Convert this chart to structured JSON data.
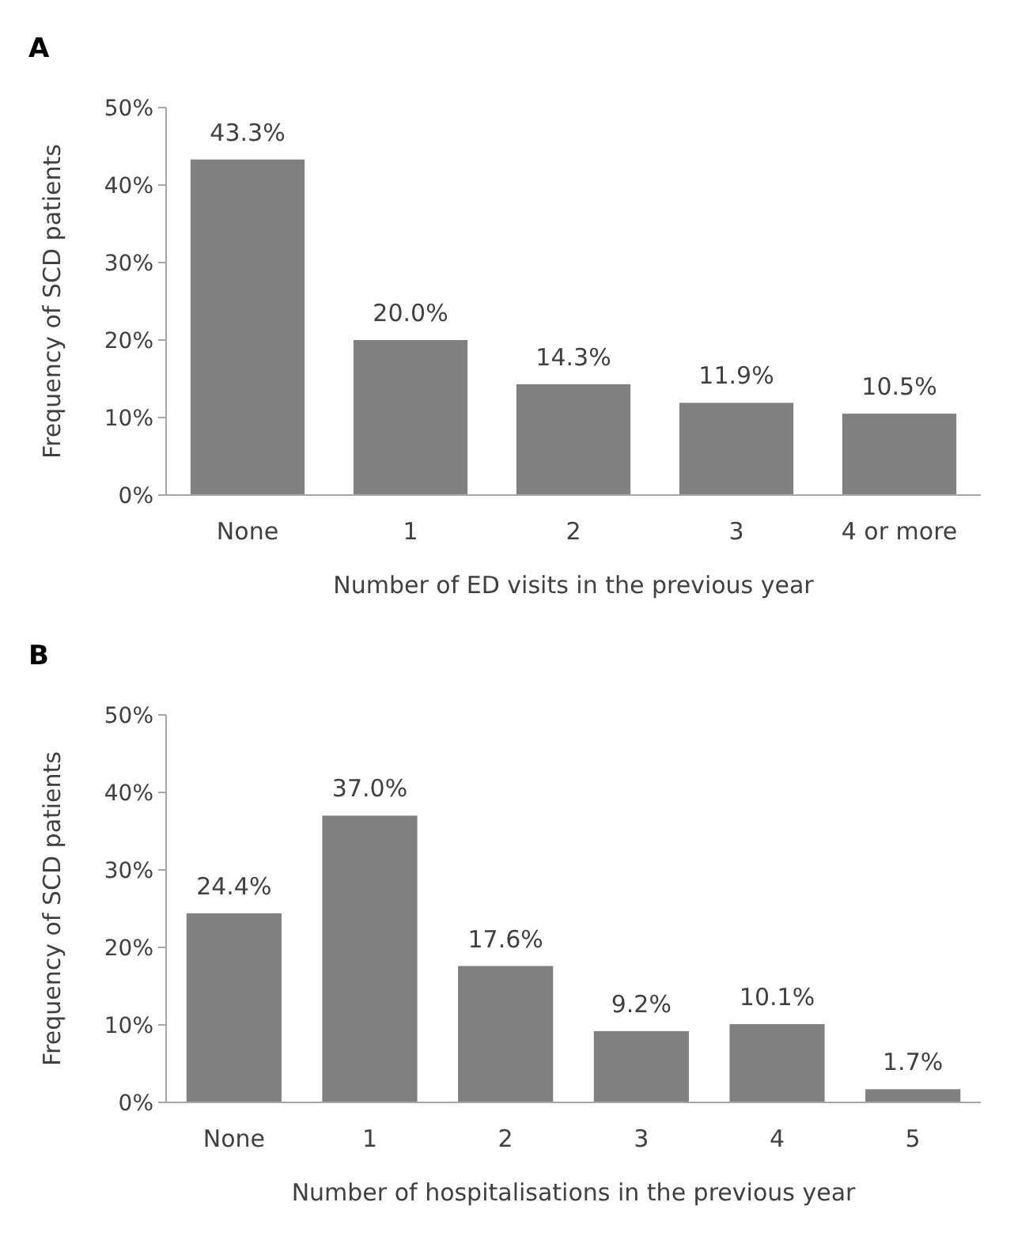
{
  "chart_data": [
    {
      "type": "bar",
      "title": "A",
      "xlabel": "Number of ED visits in the previous year",
      "ylabel": "Frequency of SCD patients",
      "categories": [
        "None",
        "1",
        "2",
        "3",
        "4 or more"
      ],
      "values": [
        43.3,
        20.0,
        14.3,
        11.9,
        10.5
      ],
      "value_labels": [
        "43.3%",
        "20.0%",
        "14.3%",
        "11.9%",
        "10.5%"
      ],
      "color": "#808080",
      "ylim": [
        0,
        50
      ],
      "yticks": [
        {
          "value": 0,
          "label": "0%"
        },
        {
          "value": 10,
          "label": "10%"
        },
        {
          "value": 20,
          "label": "20%"
        },
        {
          "value": 30,
          "label": "30%"
        },
        {
          "value": 40,
          "label": "40%"
        },
        {
          "value": 50,
          "label": "50%"
        }
      ]
    },
    {
      "type": "bar",
      "title": "B",
      "xlabel": "Number of hospitalisations in the previous year",
      "ylabel": "Frequency of SCD patients",
      "categories": [
        "None",
        "1",
        "2",
        "3",
        "4",
        "5"
      ],
      "values": [
        24.4,
        37.0,
        17.6,
        9.2,
        10.1,
        1.7
      ],
      "value_labels": [
        "24.4%",
        "37.0%",
        "17.6%",
        "9.2%",
        "10.1%",
        "1.7%"
      ],
      "color": "#808080",
      "ylim": [
        0,
        50
      ],
      "yticks": [
        {
          "value": 0,
          "label": "0%"
        },
        {
          "value": 10,
          "label": "10%"
        },
        {
          "value": 20,
          "label": "20%"
        },
        {
          "value": 30,
          "label": "30%"
        },
        {
          "value": 40,
          "label": "40%"
        },
        {
          "value": 50,
          "label": "50%"
        }
      ]
    }
  ]
}
